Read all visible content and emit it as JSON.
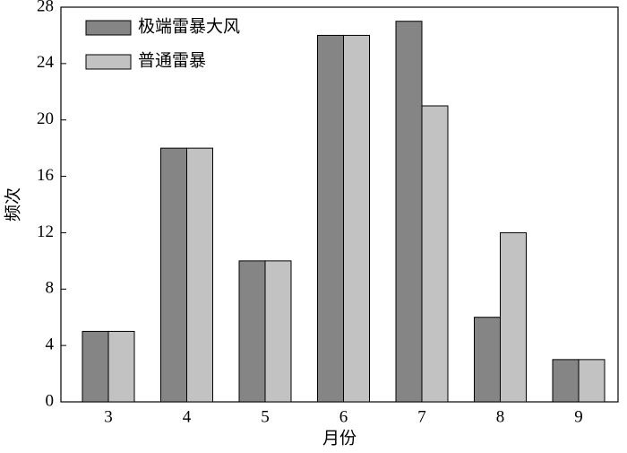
{
  "chart_data": {
    "type": "bar",
    "categories": [
      "3",
      "4",
      "5",
      "6",
      "7",
      "8",
      "9"
    ],
    "series": [
      {
        "name": "极端雷暴大风",
        "color": "#858585",
        "values": [
          5,
          18,
          10,
          26,
          27,
          6,
          3
        ]
      },
      {
        "name": "普通雷暴",
        "color": "#c2c2c2",
        "values": [
          5,
          18,
          10,
          26,
          21,
          12,
          3
        ]
      }
    ],
    "x_label": "月份",
    "y_label": "频次",
    "ylim": [
      0,
      28
    ],
    "yticks": [
      0,
      4,
      8,
      12,
      16,
      20,
      24,
      28
    ],
    "legend": "top-left"
  }
}
